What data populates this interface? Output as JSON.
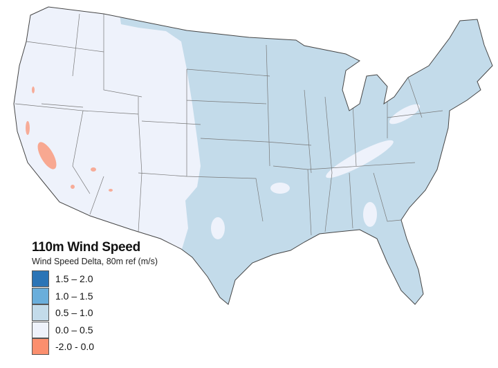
{
  "legend": {
    "title": "110m Wind Speed",
    "subtitle": "Wind Speed Delta, 80m ref (m/s)",
    "items": [
      {
        "label": "1.5 – 2.0",
        "color": "#2b74b6"
      },
      {
        "label": "1.0 – 1.5",
        "color": "#6aaedb"
      },
      {
        "label": "0.5 – 1.0",
        "color": "#c3dbea"
      },
      {
        "label": "0.0 – 0.5",
        "color": "#eef2fb"
      },
      {
        "label": "-2.0 - 0.0",
        "color": "#fb8f6e"
      }
    ]
  },
  "map": {
    "region": "contiguous United States",
    "west_color": "#eef2fb",
    "east_color": "#c3dbea",
    "negative_color": "#fb8f6e",
    "border_color": "#555555"
  }
}
